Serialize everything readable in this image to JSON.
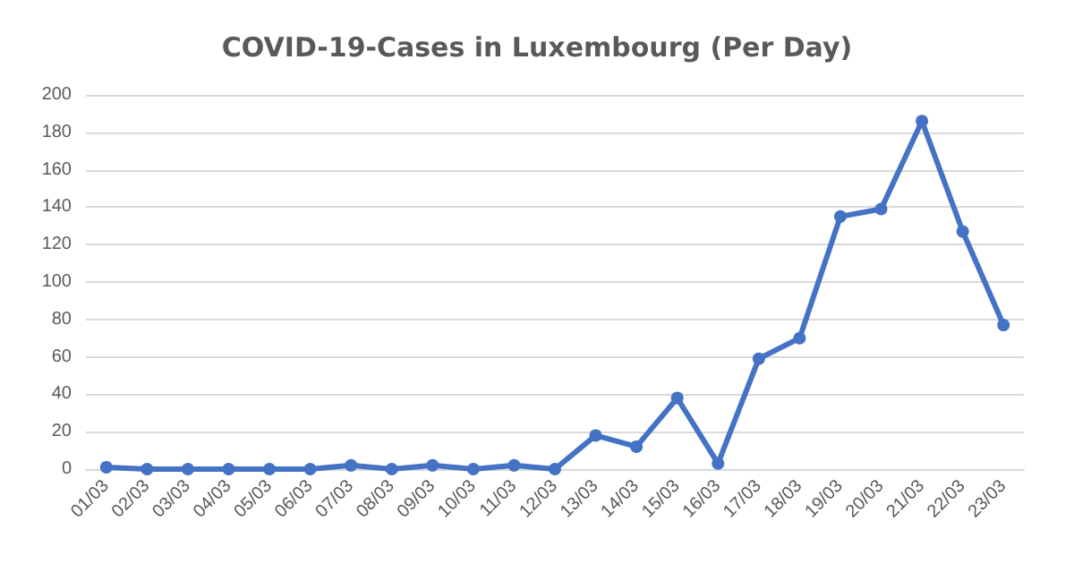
{
  "chart_data": {
    "type": "line",
    "title": "COVID-19-Cases in Luxembourg (Per Day)",
    "categories": [
      "01/03",
      "02/03",
      "03/03",
      "04/03",
      "05/03",
      "06/03",
      "07/03",
      "08/03",
      "09/03",
      "10/03",
      "11/03",
      "12/03",
      "13/03",
      "14/03",
      "15/03",
      "16/03",
      "17/03",
      "18/03",
      "19/03",
      "20/03",
      "21/03",
      "22/03",
      "23/03"
    ],
    "series": [
      {
        "color": "#4472c4",
        "values": [
          1,
          0,
          0,
          0,
          0,
          0,
          2,
          0,
          2,
          0,
          2,
          0,
          18,
          12,
          38,
          3,
          59,
          70,
          135,
          139,
          186,
          127,
          77
        ]
      }
    ],
    "ylim": [
      0,
      200
    ],
    "yticks": [
      0,
      20,
      40,
      60,
      80,
      100,
      120,
      140,
      160,
      180,
      200
    ],
    "grid": "y",
    "marker": "circle",
    "line_style": "solid"
  }
}
